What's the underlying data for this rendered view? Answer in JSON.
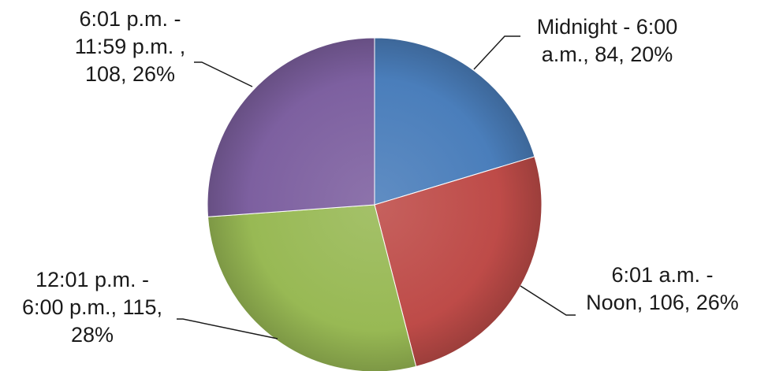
{
  "chart_data": {
    "type": "pie",
    "title": "",
    "categories": [
      "Midnight - 6:00 a.m.",
      "6:01 a.m. - Noon",
      "12:01 p.m. - 6:00 p.m.",
      "6:01 p.m. - 11:59 p.m. "
    ],
    "values": [
      84,
      106,
      115,
      108
    ],
    "percentages": [
      "20%",
      "26%",
      "28%",
      "26%"
    ],
    "colors": [
      "#4a7ebb",
      "#be4b48",
      "#98b954",
      "#7d60a0"
    ],
    "start_angle_deg": 0,
    "direction": "clockwise",
    "legend": "none",
    "labels": [
      {
        "lines": [
          "Midnight - 6:00",
          "a.m., 84, 20%"
        ]
      },
      {
        "lines": [
          "6:01 a.m. -",
          "Noon, 106, 26%"
        ]
      },
      {
        "lines": [
          "12:01 p.m. -",
          "6:00 p.m., 115,",
          "28%"
        ]
      },
      {
        "lines": [
          "6:01 p.m. -",
          "11:59 p.m. ,",
          "108, 26%"
        ]
      }
    ]
  }
}
